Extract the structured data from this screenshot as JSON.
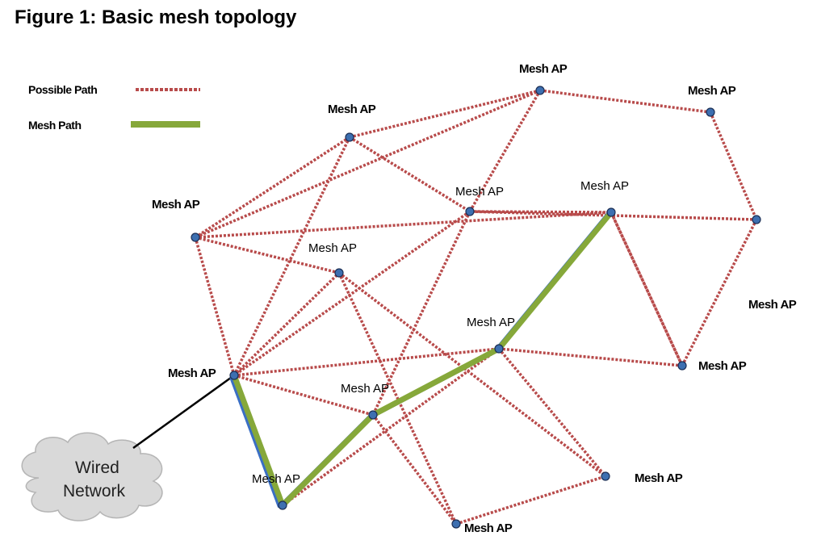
{
  "title": "Figure 1: Basic mesh topology",
  "legend": {
    "possible_path": "Possible Path",
    "mesh_path": "Mesh Path"
  },
  "colors": {
    "possible_path": "#b84b4b",
    "mesh_path": "#86a83a",
    "mesh_path_shadow": "#3a6fc4",
    "node_fill": "#3d6fb0",
    "node_stroke": "#1c2f55",
    "wired_link": "#000000",
    "cloud": "#d9d9d9"
  },
  "cloud": {
    "line1": "Wired",
    "line2": "Network"
  },
  "nodes": [
    {
      "id": "n1",
      "label": "Mesh AP"
    },
    {
      "id": "n2",
      "label": "Mesh AP"
    },
    {
      "id": "n3",
      "label": "Mesh AP"
    },
    {
      "id": "n4",
      "label": "Mesh AP"
    },
    {
      "id": "n5",
      "label": "Mesh AP"
    },
    {
      "id": "n6",
      "label": "Mesh AP"
    },
    {
      "id": "n7",
      "label": "Mesh AP"
    },
    {
      "id": "n8",
      "label": "Mesh AP"
    },
    {
      "id": "n9",
      "label": "Mesh AP"
    },
    {
      "id": "n10",
      "label": "Mesh AP"
    },
    {
      "id": "n11",
      "label": "Mesh AP"
    },
    {
      "id": "n12",
      "label": "Mesh AP"
    },
    {
      "id": "n13",
      "label": "Mesh AP"
    },
    {
      "id": "n14",
      "label": "Mesh AP"
    },
    {
      "id": "n15",
      "label": "Mesh AP"
    }
  ],
  "extra_labels": [
    "Mesh AP"
  ],
  "possible_paths": [
    [
      "n1",
      "n2"
    ],
    [
      "n1",
      "n3"
    ],
    [
      "n1",
      "n5"
    ],
    [
      "n1",
      "n6"
    ],
    [
      "n2",
      "n4"
    ],
    [
      "n3",
      "n6"
    ],
    [
      "n3",
      "n9"
    ],
    [
      "n3",
      "n5"
    ],
    [
      "n4",
      "n5"
    ],
    [
      "n4",
      "n8"
    ],
    [
      "n5",
      "n9"
    ],
    [
      "n5",
      "n10"
    ],
    [
      "n5",
      "n7"
    ],
    [
      "n6",
      "n7"
    ],
    [
      "n6",
      "n9"
    ],
    [
      "n6",
      "n12"
    ],
    [
      "n8",
      "n7"
    ],
    [
      "n8",
      "n11"
    ],
    [
      "n9",
      "n10"
    ],
    [
      "n9",
      "n11"
    ],
    [
      "n9",
      "n12"
    ],
    [
      "n11",
      "n15"
    ],
    [
      "n11",
      "n14"
    ],
    [
      "n12",
      "n13"
    ],
    [
      "n12",
      "n14"
    ],
    [
      "n10",
      "n13"
    ],
    [
      "n10",
      "n15"
    ],
    [
      "n13",
      "n14"
    ],
    [
      "n7",
      "n8"
    ]
  ],
  "mesh_path": [
    "n9",
    "n15",
    "n10",
    "n11",
    "n7"
  ],
  "wired_link": [
    "cloud",
    "n9"
  ]
}
